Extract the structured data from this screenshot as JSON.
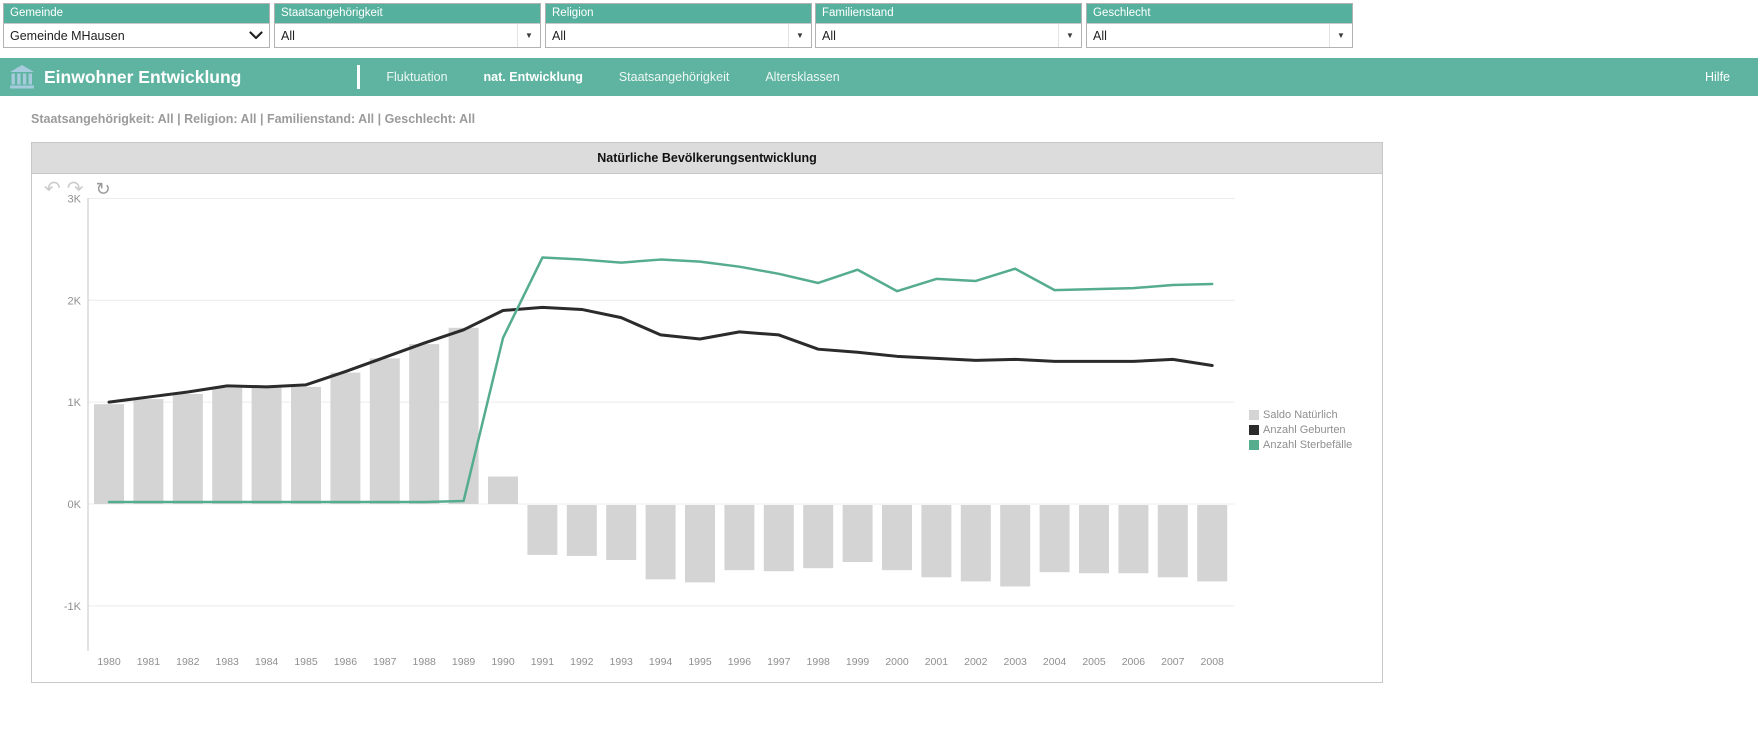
{
  "filters": [
    {
      "label": "Gemeinde",
      "value": "Gemeinde MHausen",
      "arrow": "native-select"
    },
    {
      "label": "Staatsangehörigkeit",
      "value": "All",
      "arrow": "combo"
    },
    {
      "label": "Religion",
      "value": "All",
      "arrow": "combo"
    },
    {
      "label": "Familienstand",
      "value": "All",
      "arrow": "combo"
    },
    {
      "label": "Geschlecht",
      "value": "All",
      "arrow": "combo"
    }
  ],
  "appbar": {
    "title": "Einwohner Entwicklung",
    "tabs": [
      {
        "label": "Fluktuation",
        "active": false
      },
      {
        "label": "nat. Entwicklung",
        "active": true
      },
      {
        "label": "Staatsangehörigkeit",
        "active": false
      },
      {
        "label": "Altersklassen",
        "active": false
      }
    ],
    "help_label": "Hilfe"
  },
  "status_line": "Staatsangehörigkeit: All | Religion: All | Familienstand: All | Geschlecht: All",
  "chart": {
    "title": "Natürliche Bevölkerungsentwicklung",
    "toolbar": {
      "undo_icon": "↶",
      "redo_icon": "↷",
      "refresh_icon": "↻"
    }
  },
  "icons": {
    "bank_icon_color": "#a6cbdd",
    "dropdown_arrow": "▼"
  },
  "colors": {
    "teal_header": "#55b19d",
    "teal_appbar": "#5fb4a1",
    "bar_fill": "#d4d4d4",
    "births_line": "#2b2b2b",
    "deaths_line": "#55ad8e",
    "grid": "#ececec",
    "axis": "#c4c4c4",
    "tick_text": "#8f8f8f"
  },
  "chart_data": {
    "type": "bar",
    "subtype": "combo-bar-and-lines",
    "title": "Natürliche Bevölkerungsentwicklung",
    "xlabel": "",
    "ylabel": "",
    "ylim": [
      -1500,
      3000
    ],
    "ytick_values": [
      3000,
      2000,
      1000,
      0,
      -1000
    ],
    "ytick_labels": [
      "3K",
      "2K",
      "1K",
      "0K",
      "-1K"
    ],
    "grid": true,
    "legend_position": "right",
    "categories": [
      1980,
      1981,
      1982,
      1983,
      1984,
      1985,
      1986,
      1987,
      1988,
      1989,
      1990,
      1991,
      1992,
      1993,
      1994,
      1995,
      1996,
      1997,
      1998,
      1999,
      2000,
      2001,
      2002,
      2003,
      2004,
      2005,
      2006,
      2007,
      2008
    ],
    "series": [
      {
        "name": "Saldo Natürlich",
        "type": "bar",
        "color": "#d4d4d4",
        "values": [
          980,
          1030,
          1080,
          1140,
          1140,
          1150,
          1290,
          1430,
          1570,
          1730,
          270,
          -490,
          -500,
          -540,
          -730,
          -760,
          -640,
          -650,
          -620,
          -560,
          -640,
          -710,
          -750,
          -800,
          -660,
          -670,
          -670,
          -710,
          -750
        ]
      },
      {
        "name": "Anzahl Geburten",
        "type": "line",
        "color": "#2b2b2b",
        "values": [
          1000,
          1050,
          1100,
          1160,
          1150,
          1170,
          1300,
          1440,
          1580,
          1710,
          1900,
          1930,
          1910,
          1830,
          1660,
          1620,
          1690,
          1660,
          1520,
          1490,
          1450,
          1430,
          1410,
          1420,
          1400,
          1400,
          1400,
          1420,
          1360
        ]
      },
      {
        "name": "Anzahl Sterbefälle",
        "type": "line",
        "color": "#55ad8e",
        "values": [
          20,
          20,
          20,
          20,
          20,
          20,
          20,
          20,
          20,
          30,
          1630,
          2420,
          2400,
          2370,
          2400,
          2380,
          2330,
          2260,
          2170,
          2300,
          2090,
          2210,
          2190,
          2310,
          2100,
          2110,
          2120,
          2150,
          2160
        ]
      }
    ]
  }
}
